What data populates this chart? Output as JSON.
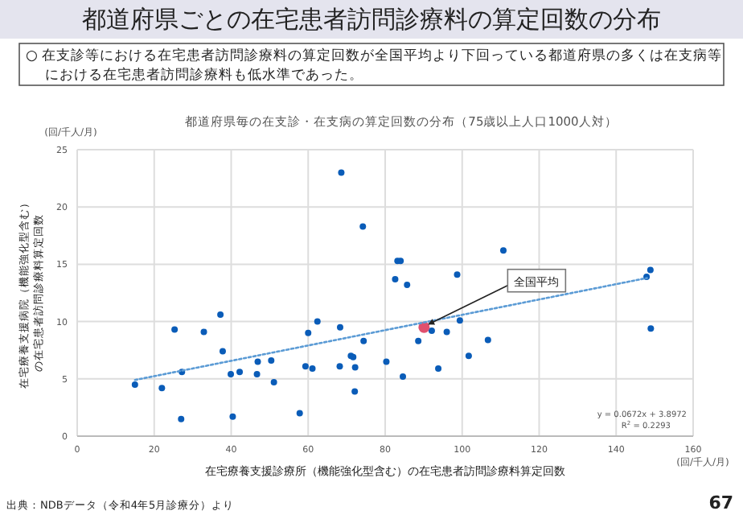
{
  "chart_data": {
    "type": "scatter",
    "title": "都道府県ごとの在宅患者訪問診療料の算定回数の分布",
    "subtitle": "○ 在支診等における在宅患者訪問診療料の算定回数が全国平均より下回っている都道府県の多くは在支病等における在宅患者訪問診療料も低水準であった。",
    "xlabel": "在宅療養支援診療所（機能強化型含む）の在宅患者訪問診療料算定回数",
    "ylabel": "在宅療養支援病院（機能強化型含む）の在宅患者訪問診療料算定回数",
    "series": [
      {
        "type": "scatter",
        "marker": "circle",
        "color": "#0a5cb8",
        "x": [
          15,
          22,
          27,
          27.2,
          25.3,
          32.9,
          37.2,
          37.8,
          39.9,
          40.4,
          42.2,
          46.7,
          46.9,
          50.4,
          51.1,
          57.8,
          59.3,
          60,
          61.1,
          62.4,
          68.2,
          68.3,
          68.6,
          71.1,
          71.7,
          72.1,
          72.2,
          74.2,
          74.4,
          80.3,
          82.6,
          83.2,
          84,
          84.6,
          85.7,
          88.6,
          92.1,
          93.8,
          96,
          98.7,
          99.4,
          101.7,
          106.7,
          110.7,
          147.9,
          148.9,
          149
        ],
        "values": [
          4.5,
          4.2,
          1.5,
          5.6,
          9.3,
          9.1,
          10.6,
          7.4,
          5.4,
          1.7,
          5.6,
          5.4,
          6.5,
          6.6,
          4.7,
          2,
          6.1,
          9,
          5.9,
          10,
          6.1,
          9.5,
          23,
          7,
          6.9,
          3.9,
          6,
          18.3,
          8.3,
          6.5,
          13.7,
          15.3,
          15.3,
          5.2,
          13.2,
          8.3,
          9.2,
          5.9,
          9.1,
          14.1,
          10.1,
          7,
          8.4,
          16.2,
          13.9,
          14.5,
          9.4
        ]
      },
      {
        "type": "scatter",
        "marker": "circle",
        "color": "#e0506e",
        "x": [
          90.1
        ],
        "values": [
          9.5
        ]
      },
      {
        "type": "line",
        "color": "#5b9bd5",
        "line_style": "dotted",
        "x": [
          15,
          148
        ],
        "values": [
          4.9,
          13.8
        ]
      }
    ],
    "xlim": [
      0,
      160
    ],
    "xticks": [
      0,
      20,
      40,
      60,
      80,
      100,
      120,
      140,
      160
    ],
    "ylim": [
      0,
      25
    ],
    "yticks": [
      0,
      5,
      10,
      15,
      20,
      25
    ],
    "grid": true,
    "annotations": [
      "都道府県毎の在支診・在支病の算定回数の分布（75歳以上人口1000人対）",
      "(回/千人/月)",
      "(回/千人/月)",
      "y = 0.0672x + 3.8972",
      "R$^{2}$ = 0.2293",
      {
        "text": "全国平均",
        "x": 90.1,
        "y": 9.5
      },
      "出典：NDBデータ（令和4年5月診療分）より",
      "67"
    ]
  }
}
